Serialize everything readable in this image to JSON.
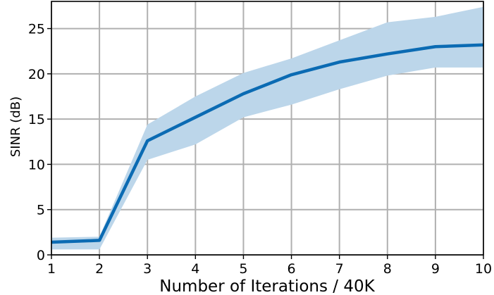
{
  "chart_data": {
    "type": "line",
    "title": "",
    "xlabel": "Number of Iterations / 40K",
    "ylabel": "SINR (dB)",
    "xlim": [
      1,
      10
    ],
    "ylim": [
      0,
      28
    ],
    "x": [
      1,
      2,
      3,
      4,
      5,
      6,
      7,
      8,
      9,
      10
    ],
    "x_ticks": [
      1,
      2,
      3,
      4,
      5,
      6,
      7,
      8,
      9,
      10
    ],
    "y_ticks": [
      0,
      5,
      10,
      15,
      20,
      25
    ],
    "grid": true,
    "series": [
      {
        "values": [
          1.4,
          1.6,
          12.6,
          15.2,
          17.8,
          19.9,
          21.3,
          22.2,
          23.0,
          23.2
        ],
        "lower": [
          0.6,
          0.6,
          10.5,
          12.2,
          15.2,
          16.6,
          18.3,
          19.8,
          20.7,
          20.7
        ],
        "upper": [
          1.9,
          2.0,
          14.4,
          17.5,
          20.1,
          21.7,
          23.7,
          25.7,
          26.3,
          27.4
        ],
        "color": "#0b6bb3",
        "band_color": "#bcd6ea"
      }
    ]
  }
}
